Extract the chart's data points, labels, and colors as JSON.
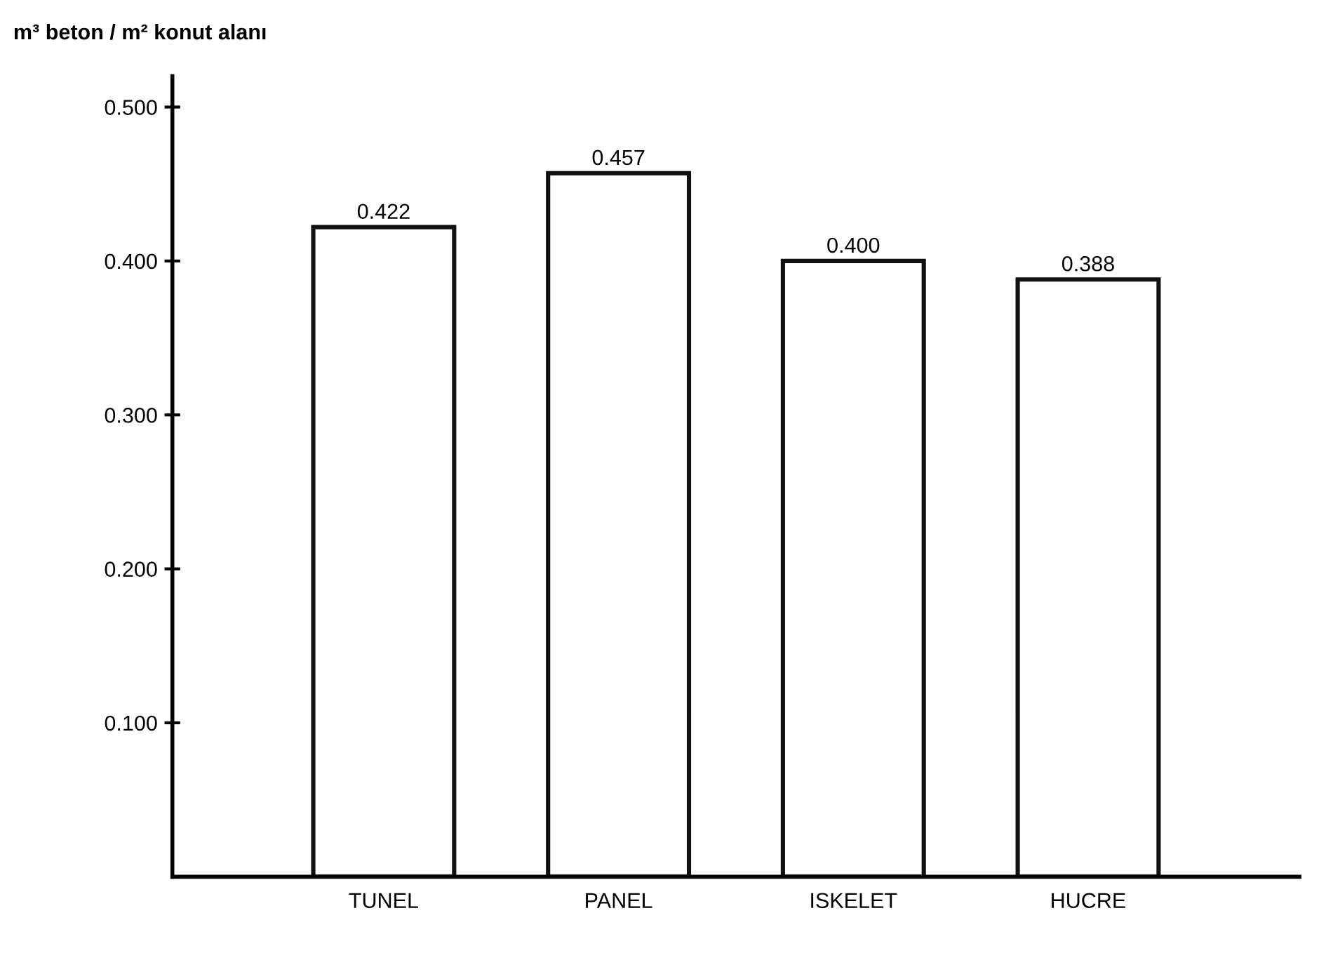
{
  "chart_data": {
    "type": "bar",
    "ylabel": "m³ beton / m² konut alanı",
    "categories": [
      "TUNEL",
      "PANEL",
      "ISKELET",
      "HUCRE"
    ],
    "values": [
      0.422,
      0.457,
      0.4,
      0.388
    ],
    "value_labels": [
      "0.422",
      "0.457",
      "0.400",
      "0.388"
    ],
    "color": "#ffffff",
    "ylim": [
      0,
      0.52
    ],
    "yticks": [
      {
        "value": 0.1,
        "label": "0.100"
      },
      {
        "value": 0.2,
        "label": "0.200"
      },
      {
        "value": 0.3,
        "label": "0.300"
      },
      {
        "value": 0.4,
        "label": "0.400"
      },
      {
        "value": 0.5,
        "label": "0.500"
      }
    ],
    "grid": false,
    "legend": false
  }
}
